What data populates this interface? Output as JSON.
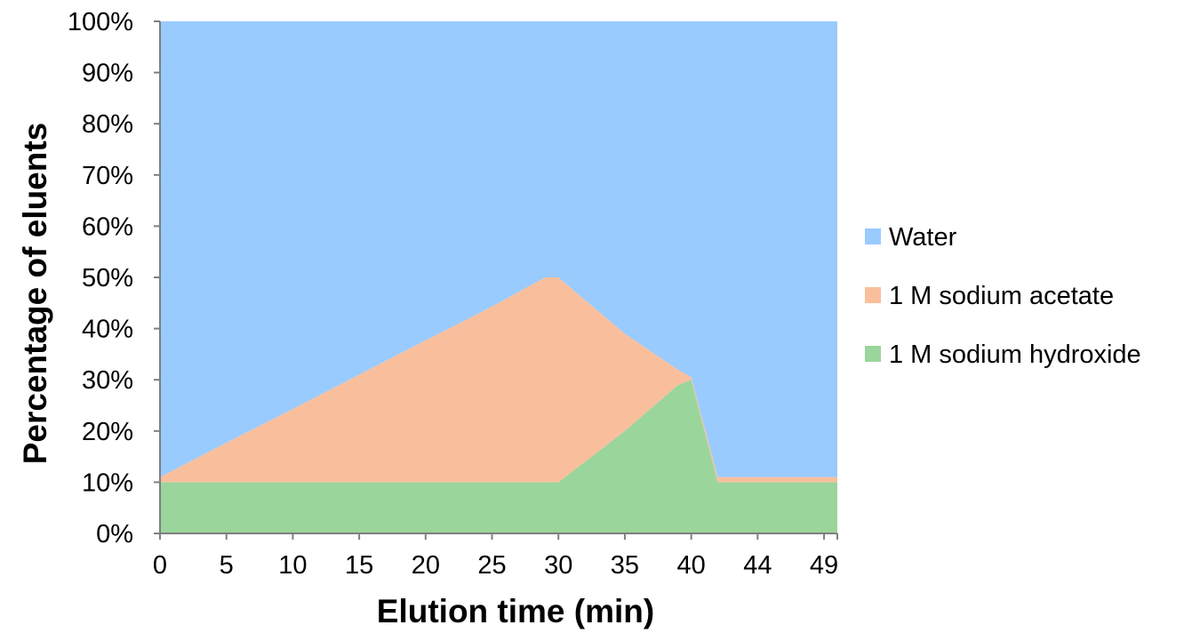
{
  "chart_data": {
    "type": "area",
    "stacked": true,
    "stacked_percent": true,
    "x": [
      0,
      5,
      10,
      15,
      20,
      25,
      29,
      30,
      35,
      39,
      40,
      42,
      44,
      49,
      51
    ],
    "x_tick_labels": [
      "0",
      "5",
      "10",
      "15",
      "20",
      "25",
      "30",
      "35",
      "40",
      "44",
      "49"
    ],
    "xlabel": "Elution time (min)",
    "ylabel": "Percentage of eluents",
    "ylim": [
      0,
      100
    ],
    "y_tick_labels": [
      "0%",
      "10%",
      "20%",
      "30%",
      "40%",
      "50%",
      "60%",
      "70%",
      "80%",
      "90%",
      "100%"
    ],
    "grid": false,
    "legend_position": "right",
    "series": [
      {
        "name": "1 M sodium hydroxide",
        "color": "#9ad59c",
        "values": [
          10,
          10,
          10,
          10,
          10,
          10,
          10,
          10,
          20,
          29,
          30,
          10,
          10,
          10,
          10
        ]
      },
      {
        "name": "1 M sodium acetate",
        "color": "#f9bf9c",
        "values": [
          1,
          7.7,
          14.3,
          21,
          27.7,
          34.3,
          40,
          40,
          19,
          3,
          0.5,
          1,
          1,
          1,
          1
        ]
      },
      {
        "name": "Water",
        "color": "#99cbff",
        "values": [
          89,
          82.3,
          75.7,
          69,
          62.3,
          55.7,
          50,
          50,
          61,
          68,
          69.5,
          89,
          89,
          89,
          89
        ]
      }
    ],
    "legend_order": [
      "Water",
      "1 M sodium acetate",
      "1 M sodium hydroxide"
    ]
  }
}
